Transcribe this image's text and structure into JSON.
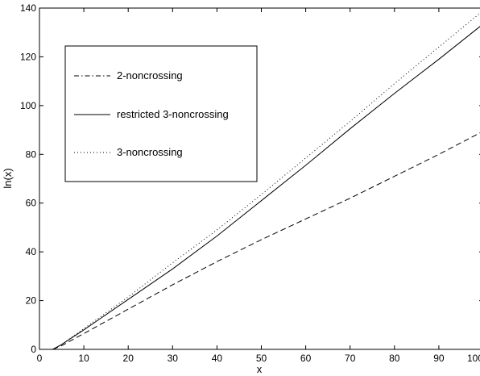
{
  "chart_data": {
    "type": "line",
    "xlabel": "x",
    "ylabel": "ln(x)",
    "xlim": [
      0,
      100
    ],
    "ylim": [
      0,
      140
    ],
    "xticks": [
      0,
      10,
      20,
      30,
      40,
      50,
      60,
      70,
      80,
      90,
      100
    ],
    "yticks": [
      0,
      20,
      40,
      60,
      80,
      100,
      120,
      140
    ],
    "grid": false,
    "legend": "top-left",
    "series": [
      {
        "name": "2-noncrossing",
        "style": "dash-dot",
        "color": "#000000",
        "x": [
          3,
          5,
          10,
          20,
          30,
          40,
          50,
          60,
          70,
          80,
          90,
          100
        ],
        "y": [
          0,
          1.5,
          6.5,
          16.5,
          26.5,
          36,
          45,
          53.5,
          62,
          71,
          80,
          89.5
        ]
      },
      {
        "name": "restricted 3-noncrossing",
        "style": "solid",
        "color": "#000000",
        "x": [
          3,
          5,
          10,
          20,
          30,
          40,
          50,
          60,
          70,
          80,
          90,
          100
        ],
        "y": [
          0,
          2,
          8,
          20.5,
          33,
          46.5,
          61,
          75.5,
          90.5,
          105,
          119,
          133.5
        ]
      },
      {
        "name": "3-noncrossing",
        "style": "dotted",
        "color": "#000000",
        "x": [
          3,
          5,
          10,
          20,
          30,
          40,
          50,
          60,
          70,
          80,
          90,
          100
        ],
        "y": [
          0,
          2,
          8.5,
          21.5,
          35.5,
          49,
          63.5,
          78.5,
          93.5,
          109,
          124,
          139
        ]
      }
    ]
  }
}
